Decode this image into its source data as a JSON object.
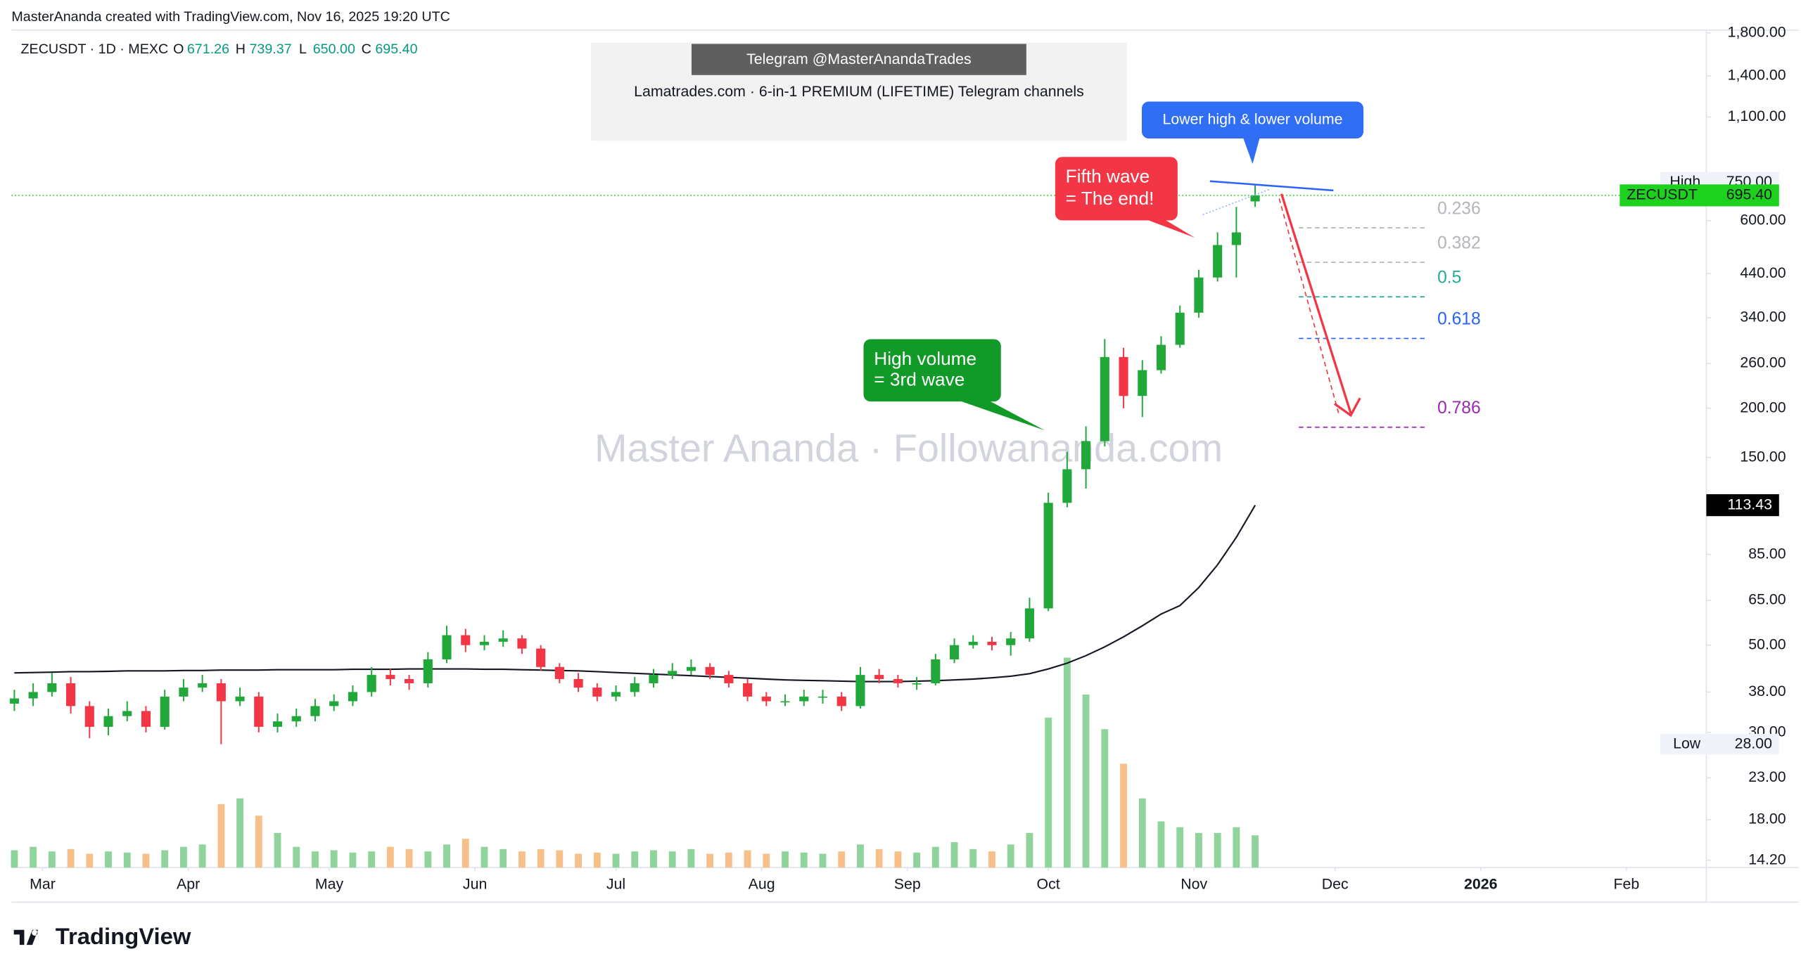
{
  "header": {
    "credit": "MasterAnanda created with TradingView.com, Nov 16, 2025 19:20 UTC",
    "symbol": "ZECUSDT · 1D · MEXC",
    "ohlc": [
      {
        "name": "O",
        "label": "671.26"
      },
      {
        "name": "H",
        "label": "739.37"
      },
      {
        "name": "L",
        "label": "650.00"
      },
      {
        "name": "C",
        "label": "695.40"
      }
    ]
  },
  "promo": {
    "telegram": "Telegram @MasterAnandaTrades",
    "text": "Lamatrades.com · 6-in-1 PREMIUM (LIFETIME) Telegram channels"
  },
  "watermark": "Master Ananda · Followananda.com",
  "logo": "TradingView",
  "chart_data": {
    "type": "candlestick",
    "log_scale": true,
    "xlim": [
      -6.6,
      354
    ],
    "ylim": [
      13.6,
      1830
    ],
    "xticks": [
      {
        "value": 0,
        "label": "Mar"
      },
      {
        "value": 31,
        "label": "Apr"
      },
      {
        "value": 61,
        "label": "May"
      },
      {
        "value": 92,
        "label": "Jun"
      },
      {
        "value": 122,
        "label": "Jul"
      },
      {
        "value": 153,
        "label": "Aug"
      },
      {
        "value": 184,
        "label": "Sep"
      },
      {
        "value": 214,
        "label": "Oct"
      },
      {
        "value": 245,
        "label": "Nov"
      },
      {
        "value": 275,
        "label": "Dec"
      },
      {
        "value": 306,
        "label": "2026"
      },
      {
        "value": 337,
        "label": "Feb"
      }
    ],
    "yticks": [
      {
        "value": 1800,
        "label": "1,800.00"
      },
      {
        "value": 1400,
        "label": "1,400.00"
      },
      {
        "value": 1100,
        "label": "1,100.00"
      },
      {
        "value": 600,
        "label": "600.00"
      },
      {
        "value": 440,
        "label": "440.00"
      },
      {
        "value": 340,
        "label": "340.00"
      },
      {
        "value": 260,
        "label": "260.00"
      },
      {
        "value": 200,
        "label": "200.00"
      },
      {
        "value": 150,
        "label": "150.00"
      },
      {
        "value": 85,
        "label": "85.00"
      },
      {
        "value": 65,
        "label": "65.00"
      },
      {
        "value": 50,
        "label": "50.00"
      },
      {
        "value": 38,
        "label": "38.00"
      },
      {
        "value": 30,
        "label": "30.00"
      },
      {
        "value": 23,
        "label": "23.00"
      },
      {
        "value": 18,
        "label": "18.00"
      },
      {
        "value": 14.2,
        "label": "14.20"
      }
    ],
    "x": [
      -6,
      -2,
      2,
      6,
      10,
      14,
      18,
      22,
      26,
      30,
      34,
      38,
      42,
      46,
      50,
      54,
      58,
      62,
      66,
      70,
      74,
      78,
      82,
      86,
      90,
      94,
      98,
      102,
      106,
      110,
      114,
      118,
      122,
      126,
      130,
      134,
      138,
      142,
      146,
      150,
      154,
      158,
      162,
      166,
      170,
      174,
      178,
      182,
      186,
      190,
      194,
      198,
      202,
      206,
      210,
      214,
      218,
      222,
      226,
      230,
      234,
      238,
      242,
      246,
      250,
      254,
      258
    ],
    "series": [
      {
        "name": "ZECUSDT",
        "up_color": "#22a83a",
        "down_color": "#f23645",
        "last_label": "695.40",
        "last_color": "#1fd11f",
        "open": [
          35.5,
          36.6,
          38,
          40,
          35,
          31,
          33,
          34,
          31,
          37,
          39,
          40,
          36,
          37,
          31,
          32,
          33,
          35,
          36,
          38,
          42,
          41,
          40,
          46,
          53,
          50,
          51,
          52,
          49,
          44,
          41,
          39,
          37,
          38,
          40,
          42,
          43,
          44,
          42,
          40,
          37,
          36,
          36,
          37,
          37,
          35,
          42,
          41,
          40,
          40,
          46,
          50,
          51,
          50,
          52,
          62,
          115,
          140,
          165,
          270,
          215,
          250,
          290,
          350,
          430,
          520,
          671.26
        ],
        "high": [
          38.5,
          40,
          42.5,
          41.5,
          36,
          34.5,
          36,
          35,
          38.5,
          41,
          42,
          41,
          39,
          38,
          33.5,
          34.5,
          36.5,
          37.5,
          39.5,
          44,
          43.5,
          42,
          48,
          56,
          55,
          53,
          54.5,
          53,
          50,
          45,
          42.5,
          40,
          39.5,
          41.5,
          43.5,
          45,
          46,
          45,
          43,
          41,
          38,
          37.5,
          38.5,
          38.5,
          38,
          44,
          43.5,
          42,
          41.5,
          47.5,
          52,
          53,
          52.5,
          54,
          66,
          122,
          155,
          180,
          300,
          285,
          265,
          305,
          365,
          450,
          560,
          650,
          739.37
        ],
        "low": [
          34,
          35,
          37,
          33.5,
          29,
          29.5,
          32,
          30,
          30.5,
          36,
          38,
          28,
          35,
          30,
          30,
          31,
          32,
          34,
          35,
          37,
          39.5,
          38.5,
          39,
          45,
          48,
          48.5,
          49.5,
          47.5,
          43,
          40,
          38,
          36,
          36,
          37,
          39,
          41,
          42,
          41,
          39,
          36,
          35,
          35,
          35,
          35.5,
          34,
          34.5,
          40,
          39,
          38.5,
          39.5,
          45,
          49,
          48.5,
          47,
          51,
          61,
          112,
          125,
          160,
          200,
          190,
          245,
          285,
          340,
          420,
          430,
          650
        ],
        "close": [
          36.6,
          38,
          40,
          35,
          31,
          33,
          34,
          31,
          37,
          39,
          40,
          36,
          37,
          31,
          32,
          33,
          35,
          36,
          38,
          42,
          41,
          40,
          46,
          53,
          50,
          51,
          52,
          49,
          44,
          41,
          39,
          37,
          38,
          40,
          42,
          43,
          44,
          42,
          40,
          37,
          36,
          36,
          37,
          37,
          35,
          42,
          41,
          40,
          40,
          46,
          50,
          51,
          50,
          52,
          62,
          115,
          140,
          165,
          270,
          215,
          250,
          290,
          350,
          430,
          520,
          560,
          695.4
        ]
      }
    ],
    "volume": {
      "ylim": [
        0,
        200
      ],
      "up_color": "#8fd49a",
      "down_color": "#f7c08a",
      "values": [
        15,
        18,
        14,
        16,
        12,
        14,
        13,
        12,
        15,
        18,
        20,
        55,
        60,
        45,
        30,
        18,
        14,
        15,
        13,
        14,
        18,
        16,
        14,
        20,
        25,
        18,
        16,
        14,
        16,
        15,
        12,
        13,
        12,
        14,
        15,
        14,
        16,
        12,
        13,
        15,
        12,
        14,
        13,
        12,
        14,
        20,
        16,
        14,
        13,
        18,
        22,
        16,
        14,
        20,
        30,
        130,
        182,
        150,
        120,
        90,
        60,
        40,
        35,
        30,
        30,
        35,
        28
      ]
    },
    "ma": {
      "color": "#131722",
      "values": [
        42.5,
        42.6,
        42.7,
        42.8,
        42.8,
        42.9,
        43,
        43,
        43,
        43.1,
        43.1,
        43.2,
        43.2,
        43.2,
        43.3,
        43.3,
        43.3,
        43.3,
        43.4,
        43.4,
        43.4,
        43.5,
        43.5,
        43.5,
        43.5,
        43.4,
        43.4,
        43.3,
        43.2,
        43.1,
        43,
        42.8,
        42.6,
        42.4,
        42.2,
        42,
        41.8,
        41.6,
        41.4,
        41.2,
        41,
        40.8,
        40.7,
        40.6,
        40.5,
        40.4,
        40.4,
        40.4,
        40.5,
        40.6,
        40.8,
        41,
        41.3,
        41.7,
        42.3,
        43.5,
        45,
        47,
        49.5,
        52.5,
        56,
        60,
        63,
        70,
        80,
        94,
        113.43
      ]
    },
    "range_marks": [
      {
        "name": "High",
        "value": 750,
        "label": "750.00"
      },
      {
        "name": "Low",
        "value": 28,
        "label": "28.00"
      }
    ],
    "fib": [
      {
        "ratio": 0.236,
        "price": 575,
        "color": "#b2b5be"
      },
      {
        "ratio": 0.382,
        "price": 470,
        "color": "#b2b5be"
      },
      {
        "ratio": 0.5,
        "price": 384,
        "color": "#22ab94"
      },
      {
        "ratio": 0.618,
        "price": 301,
        "color": "#2962ff"
      },
      {
        "ratio": 0.786,
        "price": 179,
        "color": "#9c27b0"
      }
    ],
    "annotations": [
      {
        "lines": [
          "Lower high & lower volume"
        ],
        "color": "#2f6ef5"
      },
      {
        "lines": [
          "Fifth wave",
          "= The end!"
        ],
        "color": "#f23645"
      },
      {
        "lines": [
          "High volume",
          "= 3rd wave"
        ],
        "color": "#119a28"
      }
    ]
  }
}
